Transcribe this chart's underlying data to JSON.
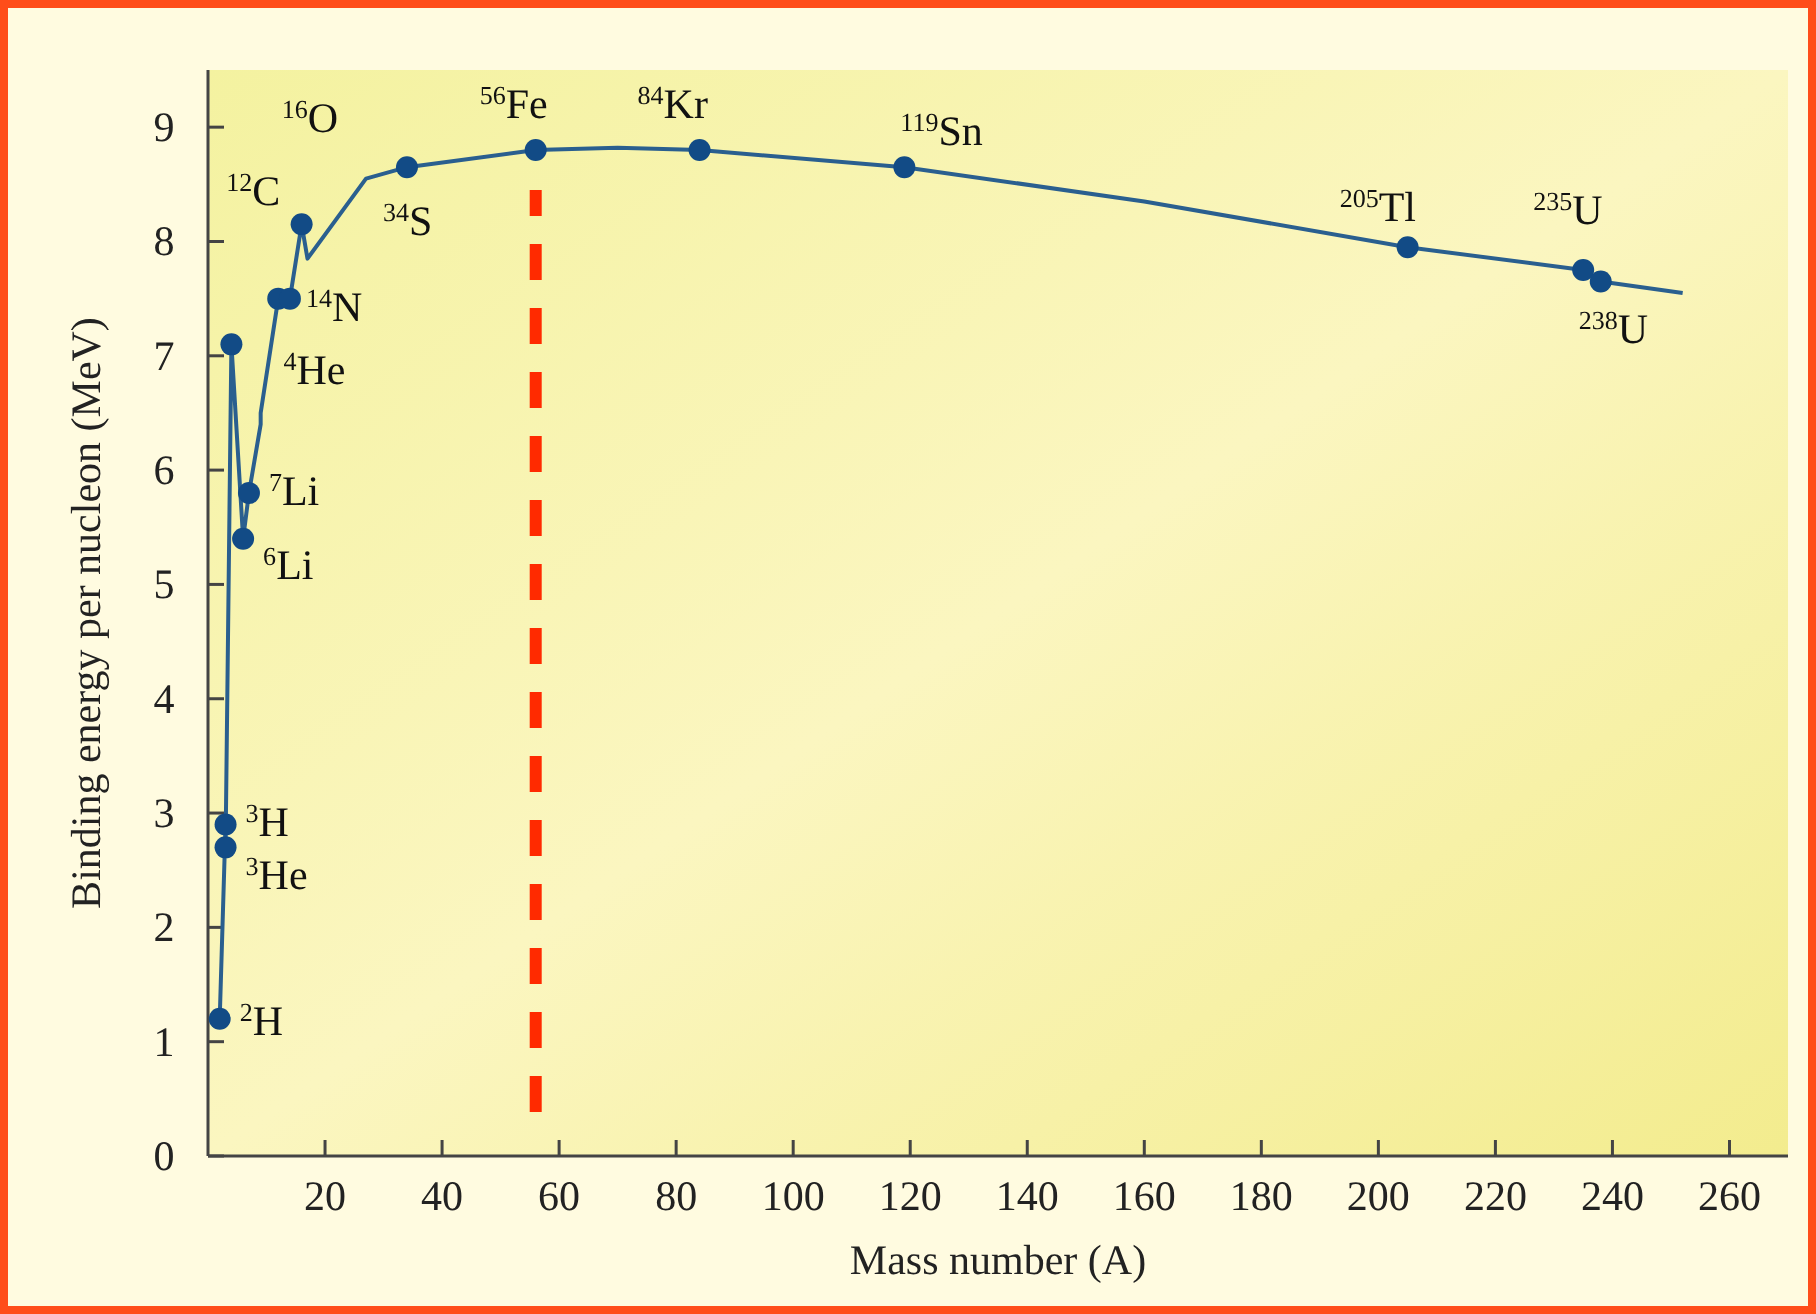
{
  "chart_data": {
    "type": "line",
    "xlabel": "Mass number (A)",
    "ylabel": "Binding energy per nucleon (MeV)",
    "xlim": [
      0,
      270
    ],
    "ylim": [
      0,
      9.5
    ],
    "xticks": [
      20,
      40,
      60,
      80,
      100,
      120,
      140,
      160,
      180,
      200,
      220,
      240,
      260
    ],
    "yticks": [
      0,
      1,
      2,
      3,
      4,
      5,
      6,
      7,
      8,
      9
    ],
    "grid": false,
    "series": [
      {
        "color": "#2a5f8f",
        "marker": "none",
        "line_style": "solid",
        "x": [
          2,
          3,
          3,
          4,
          6,
          7,
          9,
          9,
          12,
          14,
          16,
          17,
          27,
          34,
          56,
          70,
          84,
          119,
          160,
          205,
          235,
          238,
          252
        ],
        "values": [
          1.2,
          2.9,
          2.7,
          7.1,
          5.4,
          5.8,
          6.4,
          6.5,
          7.5,
          7.5,
          8.15,
          7.85,
          8.55,
          8.65,
          8.8,
          8.82,
          8.8,
          8.65,
          8.35,
          7.95,
          7.75,
          7.65,
          7.55
        ]
      },
      {
        "type": "scatter",
        "color": "#124b86",
        "marker": "circle",
        "x": [
          2,
          3,
          3,
          4,
          6,
          7,
          12,
          14,
          16,
          34,
          56,
          84,
          119,
          205,
          235,
          238
        ],
        "values": [
          1.2,
          2.9,
          2.7,
          7.1,
          5.4,
          5.8,
          7.5,
          7.5,
          8.15,
          8.65,
          8.8,
          8.8,
          8.65,
          7.95,
          7.75,
          7.65
        ]
      }
    ],
    "ref_lines": [
      {
        "axis": "x",
        "value": 56,
        "color": "#ff2a00",
        "line_style": "dashed"
      }
    ],
    "annotations": [
      {
        "text": "$^{2}$H",
        "x": 2,
        "y": 1.2
      },
      {
        "text": "$^{3}$H",
        "x": 3,
        "y": 2.9
      },
      {
        "text": "$^{3}$He",
        "x": 3,
        "y": 2.7
      },
      {
        "text": "$^{4}$He",
        "x": 4,
        "y": 7.1
      },
      {
        "text": "$^{7}$Li",
        "x": 7,
        "y": 5.8
      },
      {
        "text": "$^{6}$Li",
        "x": 6,
        "y": 5.4
      },
      {
        "text": "$^{12}$C",
        "x": 12,
        "y": 7.5
      },
      {
        "text": "$^{14}$N",
        "x": 14,
        "y": 7.5
      },
      {
        "text": "$^{16}$O",
        "x": 16,
        "y": 8.15
      },
      {
        "text": "$^{34}$S",
        "x": 34,
        "y": 8.65
      },
      {
        "text": "$^{56}$Fe",
        "x": 56,
        "y": 8.8
      },
      {
        "text": "$^{84}$Kr",
        "x": 84,
        "y": 8.8
      },
      {
        "text": "$^{119}$Sn",
        "x": 119,
        "y": 8.65
      },
      {
        "text": "$^{205}$Tl",
        "x": 205,
        "y": 7.95
      },
      {
        "text": "$^{235}$U",
        "x": 235,
        "y": 7.75
      },
      {
        "text": "$^{238}$U",
        "x": 238,
        "y": 7.65
      }
    ]
  }
}
